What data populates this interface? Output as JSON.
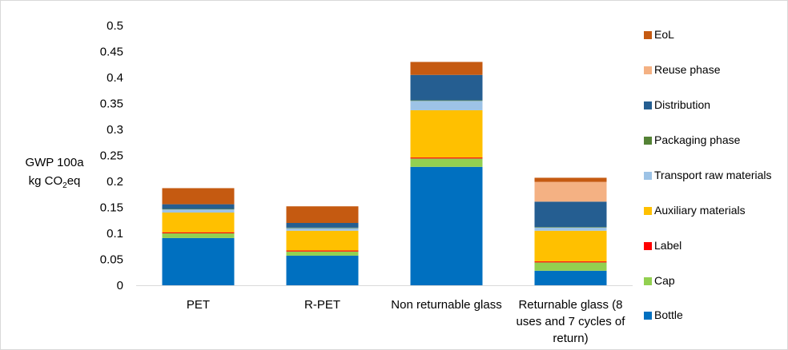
{
  "chart_data": {
    "type": "bar",
    "stacked": true,
    "categories": [
      "PET",
      "R-PET",
      "Non returnable glass",
      "Returnable glass (8 uses and 7 cycles of return)"
    ],
    "ylabel_line1": "GWP 100a",
    "ylabel_line2_prefix": "kg CO",
    "ylabel_line2_sub": "2",
    "ylabel_line2_suffix": "eq",
    "ylim": [
      0,
      0.5
    ],
    "yticks": [
      "0",
      "0.05",
      "0.1",
      "0.15",
      "0.2",
      "0.25",
      "0.3",
      "0.35",
      "0.4",
      "0.45",
      "0.5"
    ],
    "grid": false,
    "legend_position": "right",
    "series": [
      {
        "name": "Bottle",
        "color": "#0070c0",
        "values": [
          0.091,
          0.057,
          0.228,
          0.028
        ]
      },
      {
        "name": "Cap",
        "color": "#92d050",
        "values": [
          0.009,
          0.008,
          0.016,
          0.016
        ]
      },
      {
        "name": "Label",
        "color": "#ff0000",
        "values": [
          0.002,
          0.002,
          0.002,
          0.002
        ]
      },
      {
        "name": "Auxiliary materials",
        "color": "#ffc000",
        "values": [
          0.038,
          0.038,
          0.091,
          0.059
        ]
      },
      {
        "name": "Transport raw materials",
        "color": "#9dc3e6",
        "values": [
          0.006,
          0.005,
          0.018,
          0.006
        ]
      },
      {
        "name": "Packaging phase",
        "color": "#548235",
        "values": [
          0.001,
          0.001,
          0.001,
          0.001
        ]
      },
      {
        "name": "Distribution",
        "color": "#255e91",
        "values": [
          0.009,
          0.009,
          0.049,
          0.049
        ]
      },
      {
        "name": "Reuse phase",
        "color": "#f4b183",
        "values": [
          0,
          0,
          0,
          0.038
        ]
      },
      {
        "name": "EoL",
        "color": "#c55a11",
        "values": [
          0.031,
          0.032,
          0.025,
          0.008
        ]
      }
    ],
    "legend_order": [
      "EoL",
      "Reuse phase",
      "Distribution",
      "Packaging phase",
      "Transport raw materials",
      "Auxiliary materials",
      "Label",
      "Cap",
      "Bottle"
    ]
  }
}
